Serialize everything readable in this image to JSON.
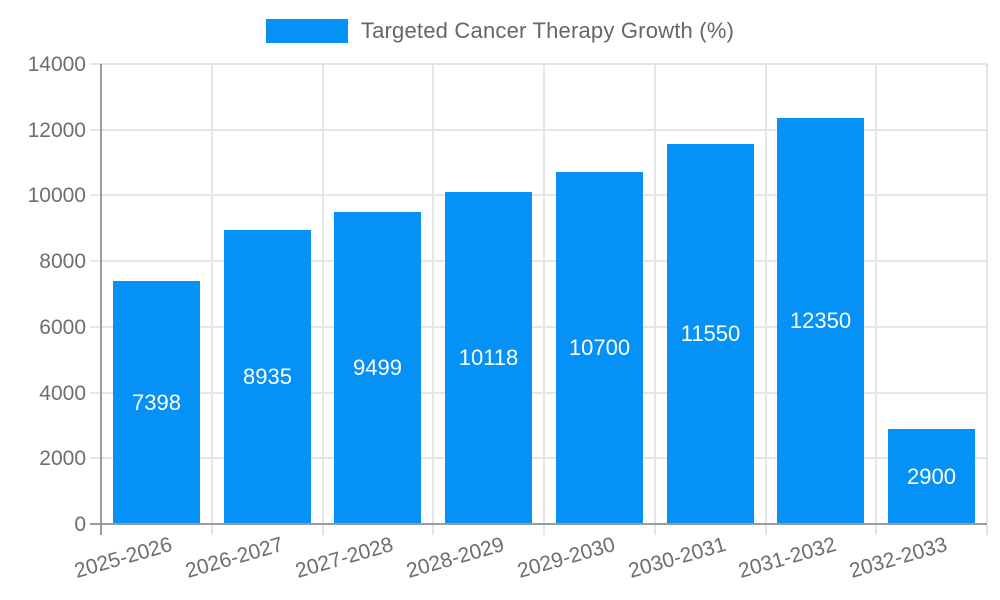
{
  "chart_data": {
    "type": "bar",
    "title": "Targeted Cancer Therapy Growth (%)",
    "categories": [
      "2025-2026",
      "2026-2027",
      "2027-2028",
      "2028-2029",
      "2029-2030",
      "2030-2031",
      "2031-2032",
      "2032-2033"
    ],
    "values": [
      7398,
      8935,
      9499,
      10118,
      10700,
      11550,
      12350,
      2900
    ],
    "xlabel": "",
    "ylabel": "",
    "ylim": [
      0,
      14000
    ],
    "ytick_step": 2000,
    "ytick_labels": [
      "0",
      "2000",
      "4000",
      "6000",
      "8000",
      "10000",
      "12000",
      "14000"
    ],
    "grid": true,
    "legend_position": "top",
    "value_labels_inside_bars": true
  },
  "legend": {
    "label": "Targeted Cancer Therapy Growth (%)"
  },
  "colors": {
    "bar": "#0591f5",
    "bar_value_text": "#ffffff",
    "grid_line": "#e5e5e5",
    "axis_line": "#9b9b9b",
    "tick_text": "#6e6e6e",
    "legend_text": "#666666",
    "background": "#ffffff"
  }
}
